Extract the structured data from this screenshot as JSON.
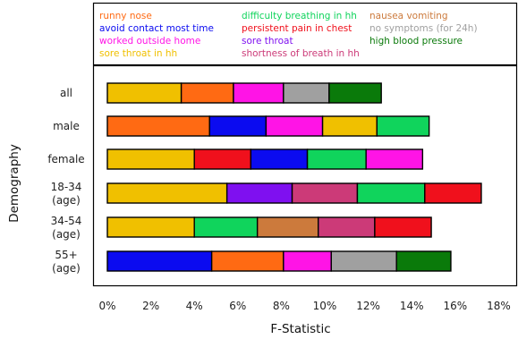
{
  "chart_data": {
    "type": "bar",
    "stacked": true,
    "orientation": "horizontal",
    "title": "",
    "xlabel": "F-Statistic",
    "ylabel": "Demography",
    "xlim": [
      0,
      18
    ],
    "x_ticks": [
      "0%",
      "2%",
      "4%",
      "6%",
      "8%",
      "10%",
      "12%",
      "14%",
      "16%",
      "18%"
    ],
    "grid": false,
    "legend_position": "top",
    "legend": [
      {
        "name": "runny nose",
        "color": "#ff6a13"
      },
      {
        "name": "avoid contact most time",
        "color": "#0b0bf0"
      },
      {
        "name": "worked outside home",
        "color": "#ff14e6"
      },
      {
        "name": "sore throat in hh",
        "color": "#f0c000"
      },
      {
        "name": "difficulty breathing in hh",
        "color": "#10d45c"
      },
      {
        "name": "persistent pain in chest",
        "color": "#f0101c"
      },
      {
        "name": "sore throat",
        "color": "#7f10f0"
      },
      {
        "name": "shortness of breath in hh",
        "color": "#cc3a78"
      },
      {
        "name": "nausea vomiting",
        "color": "#cc7a3c"
      },
      {
        "name": "no symptoms (for 24h)",
        "color": "#a0a0a0"
      },
      {
        "name": "high blood pressure",
        "color": "#0a7a0a"
      }
    ],
    "categories": [
      "all",
      "male",
      "female",
      "18-34\n(age)",
      "34-54\n(age)",
      "55+\n(age)"
    ],
    "rows": [
      {
        "label": "all",
        "segments": [
          {
            "series": "sore throat in hh",
            "value": 3.4
          },
          {
            "series": "runny nose",
            "value": 2.4
          },
          {
            "series": "worked outside home",
            "value": 2.3
          },
          {
            "series": "no symptoms (for 24h)",
            "value": 2.1
          },
          {
            "series": "high blood pressure",
            "value": 2.4
          }
        ]
      },
      {
        "label": "male",
        "segments": [
          {
            "series": "runny nose",
            "value": 4.7
          },
          {
            "series": "avoid contact most time",
            "value": 2.6
          },
          {
            "series": "worked outside home",
            "value": 2.6
          },
          {
            "series": "sore throat in hh",
            "value": 2.5
          },
          {
            "series": "difficulty breathing in hh",
            "value": 2.4
          }
        ]
      },
      {
        "label": "female",
        "segments": [
          {
            "series": "sore throat in hh",
            "value": 4.0
          },
          {
            "series": "persistent pain in chest",
            "value": 2.6
          },
          {
            "series": "avoid contact most time",
            "value": 2.6
          },
          {
            "series": "difficulty breathing in hh",
            "value": 2.7
          },
          {
            "series": "worked outside home",
            "value": 2.6
          }
        ]
      },
      {
        "label": "18-34 (age)",
        "segments": [
          {
            "series": "sore throat in hh",
            "value": 5.5
          },
          {
            "series": "sore throat",
            "value": 3.0
          },
          {
            "series": "shortness of breath in hh",
            "value": 3.0
          },
          {
            "series": "difficulty breathing in hh",
            "value": 3.1
          },
          {
            "series": "persistent pain in chest",
            "value": 2.6
          }
        ]
      },
      {
        "label": "34-54 (age)",
        "segments": [
          {
            "series": "sore throat in hh",
            "value": 4.0
          },
          {
            "series": "difficulty breathing in hh",
            "value": 2.9
          },
          {
            "series": "nausea vomiting",
            "value": 2.8
          },
          {
            "series": "shortness of breath in hh",
            "value": 2.6
          },
          {
            "series": "persistent pain in chest",
            "value": 2.6
          }
        ]
      },
      {
        "label": "55+ (age)",
        "segments": [
          {
            "series": "avoid contact most time",
            "value": 4.8
          },
          {
            "series": "runny nose",
            "value": 3.3
          },
          {
            "series": "worked outside home",
            "value": 2.2
          },
          {
            "series": "no symptoms (for 24h)",
            "value": 3.0
          },
          {
            "series": "high blood pressure",
            "value": 2.5
          }
        ]
      }
    ]
  }
}
